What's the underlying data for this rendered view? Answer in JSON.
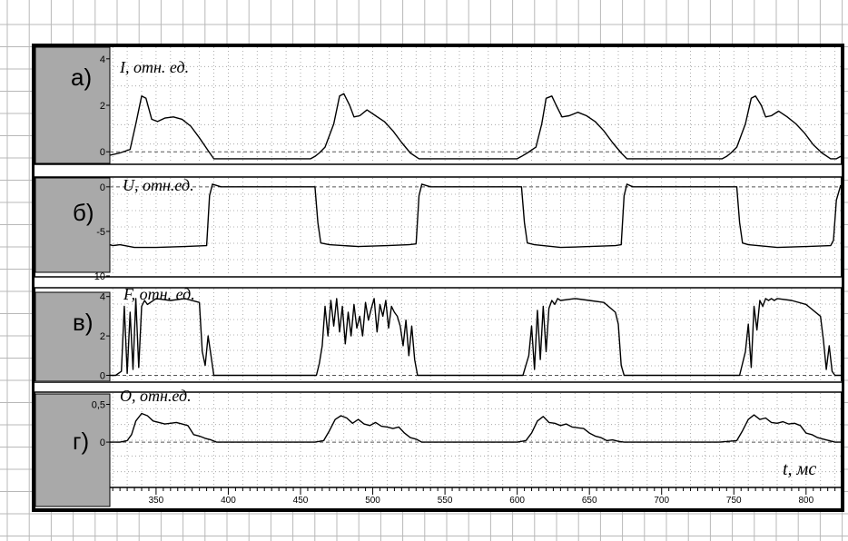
{
  "chart_data": [
    {
      "type": "line",
      "panel_letter": "а)",
      "ylabel": "I, отн. ед.",
      "yticks": [
        "4",
        "2",
        "0"
      ],
      "ytick_values": [
        4,
        2,
        0
      ],
      "ylim": [
        -0.5,
        4.5
      ],
      "xlim": [
        318,
        824
      ],
      "series": [
        {
          "x": [
            318,
            325,
            332,
            336,
            340,
            343,
            347,
            351,
            356,
            362,
            368,
            374,
            380,
            386,
            390,
            398,
            420,
            440,
            457,
            460,
            463,
            467,
            473,
            477,
            480,
            484,
            487,
            491,
            496,
            502,
            508,
            514,
            520,
            526,
            532,
            536,
            550,
            570,
            590,
            600,
            603,
            607,
            613,
            617,
            620,
            624,
            627,
            631,
            636,
            642,
            648,
            654,
            660,
            666,
            672,
            676,
            690,
            710,
            730,
            742,
            745,
            748,
            752,
            758,
            762,
            765,
            769,
            772,
            776,
            781,
            787,
            793,
            799,
            805,
            811,
            817,
            821,
            824
          ],
          "y": [
            -0.15,
            -0.05,
            0.1,
            1.2,
            2.4,
            2.3,
            1.4,
            1.3,
            1.45,
            1.5,
            1.4,
            1.1,
            0.6,
            0.05,
            -0.3,
            -0.3,
            -0.3,
            -0.3,
            -0.3,
            -0.2,
            -0.05,
            0.2,
            1.2,
            2.4,
            2.5,
            2.0,
            1.5,
            1.55,
            1.8,
            1.55,
            1.3,
            0.9,
            0.4,
            -0.05,
            -0.3,
            -0.3,
            -0.3,
            -0.3,
            -0.3,
            -0.3,
            -0.2,
            -0.05,
            0.2,
            1.2,
            2.3,
            2.4,
            2.0,
            1.5,
            1.55,
            1.7,
            1.55,
            1.3,
            0.9,
            0.4,
            -0.05,
            -0.3,
            -0.3,
            -0.3,
            -0.3,
            -0.3,
            -0.2,
            -0.05,
            0.2,
            1.2,
            2.3,
            2.4,
            2.0,
            1.5,
            1.55,
            1.75,
            1.5,
            1.2,
            0.8,
            0.3,
            -0.05,
            -0.3,
            -0.3,
            -0.2
          ]
        }
      ]
    },
    {
      "type": "line",
      "panel_letter": "б)",
      "ylabel": "U, отн.ед.",
      "yticks": [
        "0",
        "-5",
        "-10"
      ],
      "ytick_values": [
        0,
        -5,
        -10
      ],
      "ylim": [
        -10,
        1
      ],
      "xlim": [
        318,
        824
      ],
      "series": [
        {
          "x": [
            318,
            320,
            325,
            335,
            350,
            370,
            385,
            387,
            389,
            395,
            420,
            440,
            460,
            462,
            464,
            470,
            490,
            510,
            525,
            530,
            532,
            534,
            540,
            560,
            580,
            603,
            605,
            607,
            612,
            630,
            650,
            668,
            672,
            674,
            676,
            680,
            700,
            720,
            740,
            752,
            754,
            756,
            760,
            780,
            800,
            817,
            819,
            821,
            824
          ],
          "y": [
            -6.5,
            -6.6,
            -6.5,
            -6.8,
            -6.8,
            -6.7,
            -6.6,
            -1.0,
            0.3,
            0.0,
            0.0,
            0.0,
            0.0,
            -4.0,
            -6.3,
            -6.5,
            -6.7,
            -6.6,
            -6.5,
            -6.4,
            -1.0,
            0.3,
            0.0,
            0.0,
            0.0,
            0.0,
            -4.0,
            -6.3,
            -6.5,
            -6.8,
            -6.7,
            -6.6,
            -6.5,
            -1.0,
            0.3,
            0.0,
            0.0,
            0.0,
            0.0,
            0.0,
            -4.0,
            -6.3,
            -6.5,
            -6.8,
            -6.7,
            -6.6,
            -6.0,
            -1.5,
            0.2
          ]
        }
      ]
    },
    {
      "type": "line",
      "panel_letter": "в)",
      "ylabel": "F, отн. ед.",
      "yticks": [
        "4",
        "2",
        "0"
      ],
      "ytick_values": [
        4,
        2,
        0
      ],
      "ylim": [
        -0.3,
        4.4
      ],
      "xlim": [
        318,
        824
      ],
      "series": [
        {
          "x": [
            318,
            322,
            326,
            328,
            330,
            332,
            334,
            336,
            338,
            340,
            342,
            344,
            350,
            360,
            370,
            380,
            382,
            384,
            386,
            388,
            390,
            400,
            420,
            440,
            461,
            463,
            465,
            467,
            469,
            471,
            473,
            475,
            477,
            479,
            481,
            483,
            485,
            487,
            489,
            491,
            493,
            495,
            497,
            499,
            501,
            503,
            505,
            507,
            509,
            511,
            513,
            515,
            517,
            519,
            521,
            523,
            525,
            527,
            529,
            531,
            533,
            540,
            560,
            580,
            604,
            606,
            608,
            610,
            612,
            614,
            616,
            618,
            620,
            622,
            624,
            626,
            628,
            630,
            640,
            650,
            660,
            668,
            670,
            672,
            674,
            676,
            680,
            700,
            720,
            740,
            754,
            756,
            758,
            760,
            762,
            764,
            766,
            768,
            770,
            772,
            774,
            776,
            778,
            780,
            790,
            800,
            810,
            812,
            814,
            816,
            818,
            820,
            824
          ],
          "y": [
            0,
            0,
            0.2,
            3.5,
            0.1,
            3.2,
            0.3,
            3.9,
            0.4,
            3.5,
            3.8,
            3.6,
            3.9,
            3.8,
            3.9,
            3.7,
            1.2,
            0.5,
            2.0,
            1.0,
            0,
            0,
            0,
            0,
            0,
            0.6,
            1.5,
            3.5,
            2.0,
            3.8,
            2.5,
            3.9,
            2.2,
            3.5,
            1.6,
            3.2,
            2.0,
            3.6,
            2.4,
            3.0,
            2.0,
            3.7,
            2.8,
            3.4,
            3.9,
            2.2,
            3.6,
            3.0,
            3.8,
            2.4,
            3.5,
            3.2,
            3.0,
            2.5,
            1.5,
            2.8,
            1.0,
            2.5,
            0.8,
            0,
            0,
            0,
            0,
            0,
            0,
            0.5,
            1.0,
            2.5,
            0.3,
            3.3,
            0.8,
            3.5,
            1.2,
            3.4,
            3.8,
            3.6,
            3.9,
            3.8,
            3.9,
            3.8,
            3.7,
            3.2,
            2.6,
            0.5,
            0,
            0,
            0,
            0,
            0,
            0,
            0,
            0.6,
            1.2,
            2.6,
            0.4,
            3.5,
            2.3,
            3.8,
            3.5,
            3.9,
            3.8,
            3.9,
            3.8,
            3.9,
            3.8,
            3.6,
            3.0,
            1.8,
            0.3,
            1.5,
            0.2,
            0,
            0
          ]
        }
      ]
    },
    {
      "type": "line",
      "panel_letter": "г)",
      "ylabel": "O, отн.ед.",
      "yticks": [
        "0,5",
        "0"
      ],
      "ytick_values": [
        0.5,
        0
      ],
      "ylim": [
        -0.6,
        0.65
      ],
      "xlim": [
        318,
        824
      ],
      "xlabel": "t, мс",
      "xticks": [
        "350",
        "400",
        "450",
        "500",
        "550",
        "600",
        "650",
        "700",
        "750",
        "800"
      ],
      "xtick_values": [
        350,
        400,
        450,
        500,
        550,
        600,
        650,
        700,
        750,
        800
      ],
      "series": [
        {
          "x": [
            318,
            325,
            330,
            333,
            336,
            340,
            344,
            348,
            352,
            356,
            360,
            364,
            368,
            372,
            376,
            380,
            384,
            388,
            392,
            400,
            420,
            440,
            460,
            466,
            470,
            474,
            478,
            482,
            486,
            490,
            494,
            498,
            502,
            506,
            510,
            514,
            518,
            522,
            526,
            530,
            534,
            540,
            560,
            580,
            600,
            606,
            610,
            614,
            618,
            622,
            626,
            630,
            634,
            638,
            642,
            646,
            650,
            654,
            658,
            662,
            666,
            670,
            674,
            680,
            700,
            720,
            740,
            752,
            756,
            760,
            764,
            768,
            772,
            776,
            780,
            784,
            788,
            792,
            796,
            800,
            804,
            808,
            812,
            816,
            820,
            824
          ],
          "y": [
            0,
            0,
            0.02,
            0.1,
            0.28,
            0.38,
            0.35,
            0.28,
            0.26,
            0.24,
            0.25,
            0.26,
            0.24,
            0.22,
            0.1,
            0.08,
            0.05,
            0.03,
            0,
            0,
            0,
            0,
            0,
            0.02,
            0.15,
            0.3,
            0.35,
            0.32,
            0.25,
            0.3,
            0.24,
            0.22,
            0.26,
            0.21,
            0.2,
            0.18,
            0.2,
            0.12,
            0.06,
            0.04,
            0,
            0,
            0,
            0,
            0,
            0.02,
            0.12,
            0.28,
            0.34,
            0.26,
            0.25,
            0.22,
            0.24,
            0.2,
            0.19,
            0.18,
            0.12,
            0.08,
            0.06,
            0.02,
            0.03,
            0.01,
            0,
            0,
            0,
            0,
            0,
            0.02,
            0.15,
            0.3,
            0.36,
            0.3,
            0.32,
            0.26,
            0.25,
            0.27,
            0.24,
            0.25,
            0.22,
            0.12,
            0.1,
            0.06,
            0.04,
            0.02,
            0,
            0
          ]
        }
      ]
    }
  ]
}
